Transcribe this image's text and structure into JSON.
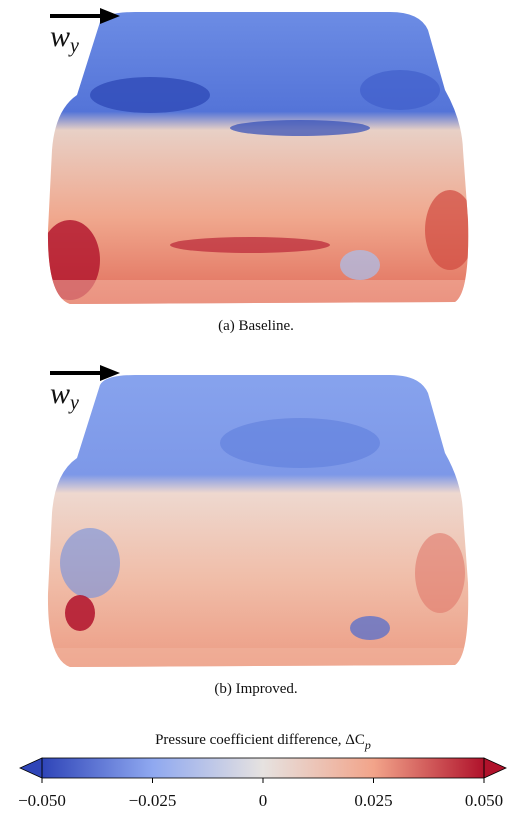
{
  "panels": [
    {
      "label": "w",
      "label_sub": "y",
      "caption": "(a)  Baseline."
    },
    {
      "label": "w",
      "label_sub": "y",
      "caption": "(b)  Improved."
    }
  ],
  "colorbar": {
    "title": "Pressure coefficient difference, ΔC",
    "title_sub": "p",
    "lim": [
      -0.05,
      0.05
    ],
    "ticks": [
      {
        "value": -0.05,
        "label": "−0.050"
      },
      {
        "value": -0.025,
        "label": "−0.025"
      },
      0,
      {
        "value": 0.025,
        "label": "0.025"
      },
      {
        "value": 0.05,
        "label": "0.050"
      }
    ],
    "colors": [
      "#2f45b8",
      "#8fa8f0",
      "#e6e2e0",
      "#f2a48a",
      "#b0122b"
    ]
  }
}
